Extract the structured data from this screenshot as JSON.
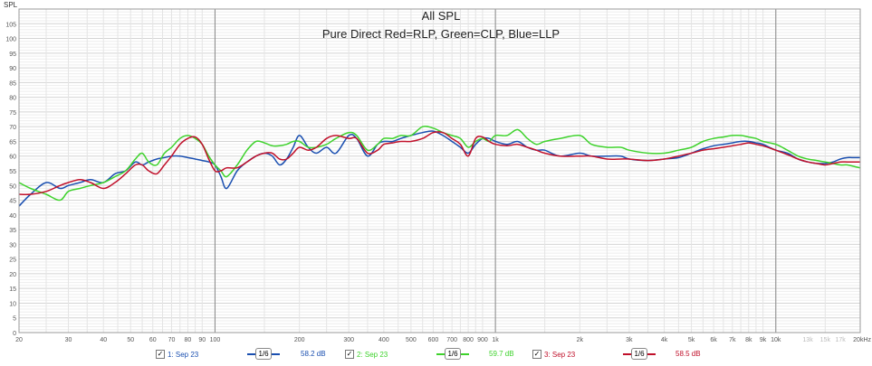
{
  "chart_data": {
    "type": "line",
    "title": "All SPL",
    "subtitle": "Pure Direct Red=RLP, Green=CLP, Blue=LLP",
    "ylabel": "SPL",
    "xlabel": "",
    "x_scale": "log",
    "xlim": [
      20,
      20000
    ],
    "ylim": [
      0,
      110
    ],
    "grid": true,
    "y_ticks": [
      0,
      5,
      10,
      15,
      20,
      25,
      30,
      35,
      40,
      45,
      50,
      55,
      60,
      65,
      70,
      75,
      80,
      85,
      90,
      95,
      100,
      105
    ],
    "x_ticks": [
      {
        "v": 20,
        "label": "20",
        "faded": false
      },
      {
        "v": 30,
        "label": "30",
        "faded": false
      },
      {
        "v": 40,
        "label": "40",
        "faded": false
      },
      {
        "v": 50,
        "label": "50",
        "faded": false
      },
      {
        "v": 60,
        "label": "60",
        "faded": false
      },
      {
        "v": 70,
        "label": "70",
        "faded": false
      },
      {
        "v": 80,
        "label": "80",
        "faded": false
      },
      {
        "v": 90,
        "label": "90",
        "faded": false
      },
      {
        "v": 100,
        "label": "100",
        "faded": false
      },
      {
        "v": 200,
        "label": "200",
        "faded": false
      },
      {
        "v": 300,
        "label": "300",
        "faded": false
      },
      {
        "v": 400,
        "label": "400",
        "faded": false
      },
      {
        "v": 500,
        "label": "500",
        "faded": false
      },
      {
        "v": 600,
        "label": "600",
        "faded": false
      },
      {
        "v": 700,
        "label": "700",
        "faded": false
      },
      {
        "v": 800,
        "label": "800",
        "faded": false
      },
      {
        "v": 900,
        "label": "900",
        "faded": false
      },
      {
        "v": 1000,
        "label": "1k",
        "faded": false
      },
      {
        "v": 2000,
        "label": "2k",
        "faded": false
      },
      {
        "v": 3000,
        "label": "3k",
        "faded": false
      },
      {
        "v": 4000,
        "label": "4k",
        "faded": false
      },
      {
        "v": 5000,
        "label": "5k",
        "faded": false
      },
      {
        "v": 6000,
        "label": "6k",
        "faded": false
      },
      {
        "v": 7000,
        "label": "7k",
        "faded": false
      },
      {
        "v": 8000,
        "label": "8k",
        "faded": false
      },
      {
        "v": 9000,
        "label": "9k",
        "faded": false
      },
      {
        "v": 10000,
        "label": "10k",
        "faded": false
      },
      {
        "v": 13000,
        "label": "13k",
        "faded": true
      },
      {
        "v": 15000,
        "label": "15k",
        "faded": true
      },
      {
        "v": 17000,
        "label": "17k",
        "faded": true
      },
      {
        "v": 20000,
        "label": "20kHz",
        "faded": false
      }
    ],
    "x": [
      20,
      22,
      25,
      28,
      30,
      33,
      36,
      40,
      44,
      48,
      52,
      55,
      58,
      62,
      66,
      70,
      75,
      80,
      85,
      90,
      95,
      100,
      105,
      110,
      120,
      130,
      140,
      150,
      160,
      170,
      180,
      190,
      200,
      215,
      230,
      250,
      270,
      300,
      320,
      350,
      380,
      400,
      430,
      460,
      500,
      550,
      600,
      650,
      700,
      750,
      800,
      850,
      900,
      950,
      1000,
      1100,
      1200,
      1300,
      1400,
      1500,
      1700,
      2000,
      2200,
      2500,
      2800,
      3000,
      3500,
      4000,
      4500,
      5000,
      5500,
      6000,
      6500,
      7000,
      7500,
      8000,
      8500,
      9000,
      10000,
      11000,
      12000,
      13000,
      14000,
      15000,
      16000,
      17000,
      18000,
      19000,
      20000
    ],
    "series": [
      {
        "color": "#1a4fb0",
        "values": [
          43,
          47,
          51,
          49,
          50,
          51,
          52,
          51,
          54,
          55,
          58,
          57,
          58,
          59,
          59.5,
          60,
          60,
          59.5,
          59,
          58.5,
          58,
          57,
          53,
          49,
          55,
          58,
          60,
          61,
          60,
          57,
          59,
          63,
          67,
          63,
          61,
          63,
          61,
          67,
          66,
          60,
          64,
          65,
          65,
          66,
          67,
          68,
          68.5,
          67,
          65,
          63,
          61,
          64,
          66,
          66,
          65,
          64,
          65,
          63,
          62,
          62,
          60,
          61,
          60,
          60,
          60,
          59,
          58.5,
          59,
          59.5,
          61,
          62.5,
          63.5,
          64,
          64.5,
          65,
          65,
          64.5,
          64,
          62,
          61,
          59,
          58,
          57.5,
          57.5,
          58,
          59,
          59.5,
          59.5,
          59.5
        ]
      },
      {
        "color": "#3ed22c",
        "values": [
          51,
          49,
          47,
          45,
          48,
          49,
          50,
          51,
          53,
          55,
          59,
          61,
          58,
          57,
          61,
          63,
          66,
          67,
          66,
          64,
          60,
          57,
          55,
          53,
          57,
          62,
          65,
          64.5,
          63.5,
          63.5,
          64,
          65,
          65,
          63,
          63,
          64,
          66,
          68,
          67,
          62,
          64,
          66,
          66,
          67,
          67,
          70,
          69.5,
          68,
          67,
          66,
          63,
          65,
          66,
          65,
          67,
          67,
          69,
          66,
          64,
          65,
          66,
          67,
          64,
          63,
          63,
          62,
          61,
          61,
          62,
          63,
          65,
          66,
          66.5,
          67,
          67,
          66.5,
          66,
          65,
          64,
          62,
          60,
          59,
          58.5,
          58,
          57.5,
          57,
          57,
          56.5,
          56
        ]
      },
      {
        "color": "#c0102a",
        "values": [
          47,
          47,
          48,
          50,
          51,
          52,
          51,
          49,
          51,
          54,
          57,
          57,
          55,
          54,
          57,
          60,
          64,
          66,
          66.5,
          64,
          59,
          55,
          55,
          56,
          56,
          58,
          60,
          61,
          61,
          59,
          59,
          61,
          63,
          62,
          63,
          66,
          67,
          66,
          66,
          61,
          62,
          64,
          64.5,
          65,
          65,
          66,
          68,
          68,
          66,
          64,
          60,
          66,
          66.5,
          65,
          64,
          63.5,
          64,
          63,
          62,
          61,
          60,
          60,
          60,
          59,
          59,
          59,
          58.5,
          59,
          60,
          61,
          62,
          62.5,
          63,
          63.5,
          64,
          64.5,
          64,
          63.5,
          62,
          60.5,
          59,
          58,
          57.5,
          57,
          57.5,
          58,
          58,
          58,
          58
        ]
      }
    ]
  },
  "legend": [
    {
      "checked": "✓",
      "label": "1: Sep 23",
      "smoothing": "1/6",
      "level": "58.2 dB",
      "color": "#1a4fb0"
    },
    {
      "checked": "✓",
      "label": "2: Sep 23",
      "smoothing": "1/6",
      "level": "59.7 dB",
      "color": "#3ed22c"
    },
    {
      "checked": "✓",
      "label": "3: Sep 23",
      "smoothing": "1/6",
      "level": "58.5 dB",
      "color": "#c0102a"
    }
  ]
}
